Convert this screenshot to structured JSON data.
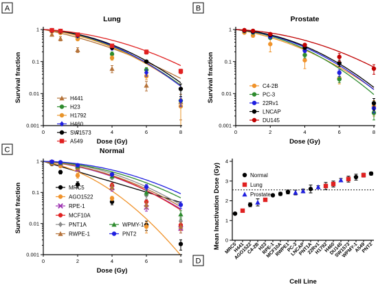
{
  "chart_data": [
    {
      "panel": "A",
      "type": "line",
      "title": "Lung",
      "xlabel": "Dose (Gy)",
      "ylabel": "Survival fraction",
      "x_ticks": [
        "0",
        "2",
        "4",
        "6",
        "8"
      ],
      "y_ticks": [
        "1",
        "0.1",
        "0.01",
        "0.001"
      ],
      "xlim": [
        0,
        8
      ],
      "ylim": [
        0.001,
        1
      ],
      "yscale": "log",
      "legend_position": "bottom-left",
      "series": [
        {
          "name": "H441",
          "color": "#b5733a",
          "marker": "triangle",
          "curve": [
            0.24,
            0.025
          ],
          "points": [
            {
              "x": 0.5,
              "y": 0.7,
              "err": 0.08
            },
            {
              "x": 1,
              "y": 0.52,
              "err": 0.08
            },
            {
              "x": 2,
              "y": 0.23,
              "err": 0.04
            },
            {
              "x": 4,
              "y": 0.06,
              "err": 0.015
            },
            {
              "x": 6,
              "y": 0.018,
              "err": 0.006
            },
            {
              "x": 8,
              "y": 0.0055,
              "err": 0.004
            }
          ]
        },
        {
          "name": "H23",
          "color": "#2e8b2e",
          "marker": "circle",
          "curve": [
            0.1,
            0.05
          ],
          "points": [
            {
              "x": 0.5,
              "y": 0.9,
              "err": 0.05
            },
            {
              "x": 1,
              "y": 0.84,
              "err": 0.05
            },
            {
              "x": 2,
              "y": 0.6,
              "err": 0.05
            },
            {
              "x": 4,
              "y": 0.17,
              "err": 0.03
            },
            {
              "x": 6,
              "y": 0.055,
              "err": 0.01
            },
            {
              "x": 8,
              "y": 0.006,
              "err": 0.002
            }
          ]
        },
        {
          "name": "H1792",
          "color": "#e8942a",
          "marker": "circle",
          "curve": [
            0.13,
            0.047
          ],
          "points": [
            {
              "x": 0.5,
              "y": 0.87,
              "err": 0.05
            },
            {
              "x": 1,
              "y": 0.78,
              "err": 0.05
            },
            {
              "x": 2,
              "y": 0.5,
              "err": 0.05
            },
            {
              "x": 4,
              "y": 0.13,
              "err": 0.02
            },
            {
              "x": 6,
              "y": 0.035,
              "err": 0.008
            },
            {
              "x": 8,
              "y": 0.004,
              "err": 0.003
            }
          ]
        },
        {
          "name": "H460",
          "color": "#1f1fe0",
          "marker": "diamond",
          "curve": [
            0.07,
            0.055
          ],
          "points": [
            {
              "x": 0.5,
              "y": 0.93,
              "err": 0.04
            },
            {
              "x": 1,
              "y": 0.88,
              "err": 0.04
            },
            {
              "x": 2,
              "y": 0.63,
              "err": 0.05
            },
            {
              "x": 4,
              "y": 0.26,
              "err": 0.03
            },
            {
              "x": 6,
              "y": 0.045,
              "err": 0.01
            },
            {
              "x": 8,
              "y": 0.006,
              "err": 0.002
            }
          ]
        },
        {
          "name": "SW1573",
          "color": "#000000",
          "marker": "circle",
          "curve": [
            0.07,
            0.051
          ],
          "points": [
            {
              "x": 0.5,
              "y": 0.93,
              "err": 0.04
            },
            {
              "x": 1,
              "y": 0.87,
              "err": 0.04
            },
            {
              "x": 2,
              "y": 0.66,
              "err": 0.05
            },
            {
              "x": 4,
              "y": 0.27,
              "err": 0.03
            },
            {
              "x": 6,
              "y": 0.1,
              "err": 0.01
            },
            {
              "x": 8,
              "y": 0.014,
              "err": 0.006
            }
          ]
        },
        {
          "name": "A549",
          "color": "#e02020",
          "marker": "square",
          "curve": [
            0.06,
            0.033
          ],
          "points": [
            {
              "x": 0.5,
              "y": 0.95,
              "err": 0.03
            },
            {
              "x": 1,
              "y": 0.9,
              "err": 0.03
            },
            {
              "x": 2,
              "y": 0.69,
              "err": 0.04
            },
            {
              "x": 4,
              "y": 0.31,
              "err": 0.03
            },
            {
              "x": 6,
              "y": 0.2,
              "err": 0.03
            },
            {
              "x": 8,
              "y": 0.05,
              "err": 0.008
            }
          ]
        }
      ]
    },
    {
      "panel": "B",
      "type": "line",
      "title": "Prostate",
      "xlabel": "Dose (Gy)",
      "ylabel": "Survival fraction",
      "x_ticks": [
        "0",
        "2",
        "4",
        "6",
        "8"
      ],
      "y_ticks": [
        "1",
        "0.1",
        "0.01",
        "0.001"
      ],
      "xlim": [
        0,
        8
      ],
      "ylim": [
        0.001,
        1
      ],
      "yscale": "log",
      "legend_position": "bottom-left",
      "series": [
        {
          "name": "C4-2B",
          "color": "#f0932b",
          "marker": "circle",
          "curve": [
            0.2,
            0.042
          ],
          "points": [
            {
              "x": 0.5,
              "y": 0.8,
              "err": 0.06
            },
            {
              "x": 1,
              "y": 0.65,
              "err": 0.08
            },
            {
              "x": 2,
              "y": 0.35,
              "err": 0.15
            },
            {
              "x": 4,
              "y": 0.11,
              "err": 0.05
            },
            {
              "x": 6,
              "y": 0.03,
              "err": 0.01
            },
            {
              "x": 8,
              "y": 0.004,
              "err": 0.002
            }
          ]
        },
        {
          "name": "PC-3",
          "color": "#2e8b2e",
          "marker": "circle",
          "curve": [
            0.12,
            0.058
          ],
          "points": [
            {
              "x": 0.5,
              "y": 0.9,
              "err": 0.04
            },
            {
              "x": 1,
              "y": 0.8,
              "err": 0.04
            },
            {
              "x": 2,
              "y": 0.55,
              "err": 0.05
            },
            {
              "x": 4,
              "y": 0.16,
              "err": 0.03
            },
            {
              "x": 6,
              "y": 0.028,
              "err": 0.006
            },
            {
              "x": 8,
              "y": 0.0025,
              "err": 0.001
            }
          ]
        },
        {
          "name": "22Rv1",
          "color": "#1f1fe0",
          "marker": "circle",
          "curve": [
            0.1,
            0.055
          ],
          "points": [
            {
              "x": 0.5,
              "y": 0.92,
              "err": 0.04
            },
            {
              "x": 1,
              "y": 0.84,
              "err": 0.04
            },
            {
              "x": 2,
              "y": 0.6,
              "err": 0.05
            },
            {
              "x": 4,
              "y": 0.22,
              "err": 0.03
            },
            {
              "x": 6,
              "y": 0.045,
              "err": 0.01
            },
            {
              "x": 8,
              "y": 0.0035,
              "err": 0.001
            }
          ]
        },
        {
          "name": "LNCAP",
          "color": "#000000",
          "marker": "circle",
          "curve": [
            0.08,
            0.055
          ],
          "points": [
            {
              "x": 0.5,
              "y": 0.93,
              "err": 0.04
            },
            {
              "x": 1,
              "y": 0.87,
              "err": 0.04
            },
            {
              "x": 2,
              "y": 0.68,
              "err": 0.05
            },
            {
              "x": 4,
              "y": 0.27,
              "err": 0.03
            },
            {
              "x": 6,
              "y": 0.09,
              "err": 0.02
            },
            {
              "x": 8,
              "y": 0.005,
              "err": 0.002
            }
          ]
        },
        {
          "name": "DU145",
          "color": "#c00000",
          "marker": "circle",
          "curve": [
            0.05,
            0.036
          ],
          "points": [
            {
              "x": 0.5,
              "y": 0.96,
              "err": 0.03
            },
            {
              "x": 1,
              "y": 0.91,
              "err": 0.03
            },
            {
              "x": 2,
              "y": 0.72,
              "err": 0.04
            },
            {
              "x": 4,
              "y": 0.33,
              "err": 0.04
            },
            {
              "x": 6,
              "y": 0.14,
              "err": 0.04
            },
            {
              "x": 8,
              "y": 0.06,
              "err": 0.02
            }
          ]
        }
      ]
    },
    {
      "panel": "C",
      "type": "line",
      "title": "Normal",
      "xlabel": "Dose (Gy)",
      "ylabel": "Survival fraction",
      "x_ticks": [
        "0",
        "2",
        "4",
        "6",
        "8"
      ],
      "y_ticks": [
        "1",
        "0.1",
        "0.01",
        "0.001"
      ],
      "xlim": [
        0,
        8
      ],
      "ylim": [
        0.001,
        1
      ],
      "yscale": "log",
      "legend_position": "bottom-left",
      "series": [
        {
          "name": "MRC5",
          "color": "#000000",
          "marker": "circle",
          "curve": [
            0.38,
            0.0
          ],
          "points": [
            {
              "x": 0.5,
              "y": 0.82,
              "err": 0.05
            },
            {
              "x": 1,
              "y": 0.45,
              "err": 0.06
            },
            {
              "x": 2,
              "y": 0.18,
              "err": 0.04
            },
            {
              "x": 4,
              "y": 0.05,
              "err": 0.01
            },
            {
              "x": 6,
              "y": 0.009,
              "err": 0.003
            },
            {
              "x": 8,
              "y": 0.0022,
              "err": 0.0008
            }
          ]
        },
        {
          "name": "AGO1522",
          "color": "#f0932b",
          "marker": "circle",
          "curve": [
            0.23,
            0.08
          ],
          "points": [
            {
              "x": 0.5,
              "y": 0.85,
              "err": 0.05
            },
            {
              "x": 1,
              "y": 0.7,
              "err": 0.06
            },
            {
              "x": 2,
              "y": 0.35,
              "err": 0.06
            },
            {
              "x": 4,
              "y": 0.065,
              "err": 0.01
            },
            {
              "x": 6,
              "y": 0.008,
              "err": 0.003
            }
          ]
        },
        {
          "name": "RPE-1",
          "color": "#9b30b0",
          "marker": "cross",
          "curve": [
            0.12,
            0.04
          ],
          "points": [
            {
              "x": 0.5,
              "y": 0.92,
              "err": 0.04
            },
            {
              "x": 1,
              "y": 0.82,
              "err": 0.04
            },
            {
              "x": 2,
              "y": 0.55,
              "err": 0.05
            },
            {
              "x": 4,
              "y": 0.14,
              "err": 0.03
            },
            {
              "x": 6,
              "y": 0.033,
              "err": 0.008
            },
            {
              "x": 8,
              "y": 0.007,
              "err": 0.002
            }
          ]
        },
        {
          "name": "MCF10A",
          "color": "#e02020",
          "marker": "circle",
          "curve": [
            0.09,
            0.045
          ],
          "points": [
            {
              "x": 0.5,
              "y": 0.93,
              "err": 0.04
            },
            {
              "x": 1,
              "y": 0.86,
              "err": 0.04
            },
            {
              "x": 2,
              "y": 0.6,
              "err": 0.05
            },
            {
              "x": 4,
              "y": 0.17,
              "err": 0.03
            },
            {
              "x": 6,
              "y": 0.05,
              "err": 0.01
            },
            {
              "x": 8,
              "y": 0.009,
              "err": 0.003
            }
          ]
        },
        {
          "name": "PNT1A",
          "color": "#8c8c8c",
          "marker": "diamond",
          "curve": [
            0.05,
            0.044
          ],
          "points": [
            {
              "x": 0.5,
              "y": 0.95,
              "err": 0.03
            },
            {
              "x": 1,
              "y": 0.9,
              "err": 0.03
            },
            {
              "x": 2,
              "y": 0.68,
              "err": 0.05
            },
            {
              "x": 4,
              "y": 0.3,
              "err": 0.04
            },
            {
              "x": 6,
              "y": 0.08,
              "err": 0.02
            },
            {
              "x": 8,
              "y": 0.012,
              "err": 0.004
            }
          ]
        },
        {
          "name": "RWPE-1",
          "color": "#b5733a",
          "marker": "triangle",
          "curve": [
            0.1,
            0.04
          ],
          "points": [
            {
              "x": 0.5,
              "y": 0.92,
              "err": 0.04
            },
            {
              "x": 1,
              "y": 0.84,
              "err": 0.04
            },
            {
              "x": 2,
              "y": 0.6,
              "err": 0.05
            },
            {
              "x": 4,
              "y": 0.15,
              "err": 0.03
            },
            {
              "x": 6,
              "y": 0.04,
              "err": 0.01
            },
            {
              "x": 8,
              "y": 0.008,
              "err": 0.003
            }
          ]
        },
        {
          "name": "WPMY-1",
          "color": "#2e8b2e",
          "marker": "triangle",
          "curve": [
            0.05,
            0.036
          ],
          "points": [
            {
              "x": 0.5,
              "y": 0.95,
              "err": 0.03
            },
            {
              "x": 1,
              "y": 0.9,
              "err": 0.03
            },
            {
              "x": 2,
              "y": 0.7,
              "err": 0.04
            },
            {
              "x": 4,
              "y": 0.33,
              "err": 0.04
            },
            {
              "x": 6,
              "y": 0.1,
              "err": 0.02
            },
            {
              "x": 8,
              "y": 0.02,
              "err": 0.006
            }
          ]
        },
        {
          "name": "PNT2",
          "color": "#1f1fe0",
          "marker": "circle",
          "curve": [
            0.02,
            0.035
          ],
          "points": [
            {
              "x": 0.5,
              "y": 0.97,
              "err": 0.03
            },
            {
              "x": 1,
              "y": 0.93,
              "err": 0.03
            },
            {
              "x": 2,
              "y": 0.75,
              "err": 0.04
            },
            {
              "x": 4,
              "y": 0.38,
              "err": 0.05
            },
            {
              "x": 6,
              "y": 0.15,
              "err": 0.03
            },
            {
              "x": 8,
              "y": 0.04,
              "err": 0.01
            }
          ]
        }
      ]
    },
    {
      "panel": "D",
      "type": "scatter",
      "xlabel": "Cell Line",
      "ylabel": "Mean Inactivation Dose (Gy)",
      "y_ticks": [
        "0",
        "1",
        "2",
        "3",
        "4"
      ],
      "ylim": [
        0,
        4
      ],
      "reference_line": 2.55,
      "legend_position": "top-left",
      "groups": [
        {
          "name": "Normal",
          "color": "#000000",
          "marker": "circle"
        },
        {
          "name": "Lung",
          "color": "#e02020",
          "marker": "square"
        },
        {
          "name": "Prostate",
          "color": "#1f1fe0",
          "marker": "triangle"
        }
      ],
      "categories": [
        "MRC5",
        "H441",
        "AGO1522",
        "C4-2B",
        "H23",
        "RPE-1",
        "MCF10A",
        "RWPE1",
        "PC-3",
        "LNCAP",
        "PNT1A",
        "22Rv1",
        "H1792",
        "H460",
        "DU145",
        "SW1573",
        "WPMY-1",
        "A549",
        "PNT2"
      ],
      "values": [
        1.35,
        1.5,
        1.8,
        1.92,
        2.05,
        2.28,
        2.35,
        2.45,
        2.42,
        2.5,
        2.6,
        2.7,
        2.75,
        2.85,
        3.05,
        3.1,
        3.2,
        3.3,
        3.38
      ],
      "errors": [
        0.05,
        0.07,
        0.1,
        0.18,
        0.08,
        0.06,
        0.08,
        0.1,
        0.12,
        0.1,
        0.2,
        0.06,
        0.18,
        0.15,
        0.08,
        0.15,
        0.15,
        0.1,
        0.08
      ],
      "value_groups": [
        "Normal",
        "Lung",
        "Normal",
        "Prostate",
        "Lung",
        "Normal",
        "Normal",
        "Normal",
        "Prostate",
        "Prostate",
        "Normal",
        "Prostate",
        "Lung",
        "Lung",
        "Prostate",
        "Lung",
        "Normal",
        "Lung",
        "Normal"
      ]
    }
  ]
}
